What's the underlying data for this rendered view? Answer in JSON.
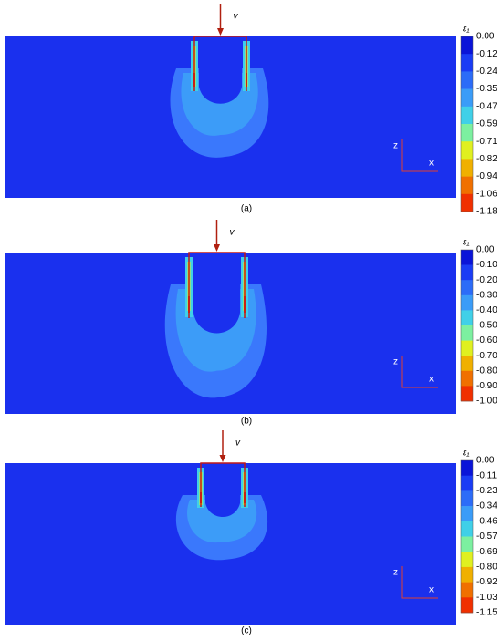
{
  "panels": [
    {
      "caption": "(a)",
      "load_label": "v",
      "axis_z": "z",
      "axis_x": "x",
      "colorbar": {
        "title": "ε₁",
        "ticks": [
          "0.00",
          "-0.12",
          "-0.24",
          "-0.35",
          "-0.47",
          "-0.59",
          "-0.71",
          "-0.82",
          "-0.94",
          "-1.06",
          "-1.18"
        ]
      }
    },
    {
      "caption": "(b)",
      "load_label": "v",
      "axis_z": "z",
      "axis_x": "x",
      "colorbar": {
        "title": "ε₁",
        "ticks": [
          "0.00",
          "-0.10",
          "-0.20",
          "-0.30",
          "-0.40",
          "-0.50",
          "-0.60",
          "-0.70",
          "-0.80",
          "-0.90",
          "-1.00"
        ]
      }
    },
    {
      "caption": "(c)",
      "load_label": "v",
      "axis_z": "z",
      "axis_x": "x",
      "colorbar": {
        "title": "ε₁",
        "ticks": [
          "0.00",
          "-0.11",
          "-0.23",
          "-0.34",
          "-0.46",
          "-0.57",
          "-0.69",
          "-0.80",
          "-0.92",
          "-1.03",
          "-1.15"
        ]
      }
    }
  ]
}
